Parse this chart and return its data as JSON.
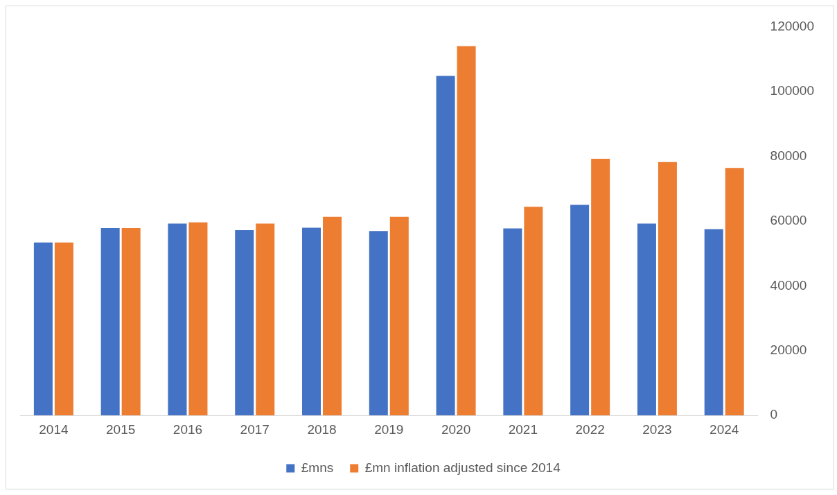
{
  "chart_data": {
    "type": "bar",
    "categories": [
      "2014",
      "2015",
      "2016",
      "2017",
      "2018",
      "2019",
      "2020",
      "2021",
      "2022",
      "2023",
      "2024"
    ],
    "series": [
      {
        "name": "£mns",
        "color": "#4472c4",
        "values": [
          53400,
          57800,
          59200,
          57200,
          57900,
          56900,
          104800,
          57700,
          65000,
          59200,
          57500
        ]
      },
      {
        "name": "£mn inflation adjusted since 2014",
        "color": "#ed7d31",
        "values": [
          53400,
          57800,
          59600,
          59200,
          61300,
          61300,
          114000,
          64400,
          79200,
          78200,
          76400
        ]
      }
    ],
    "ylim": [
      0,
      120000
    ],
    "yticks": [
      0,
      20000,
      40000,
      60000,
      80000,
      100000,
      120000
    ],
    "grid": false,
    "legend": "bottom"
  }
}
